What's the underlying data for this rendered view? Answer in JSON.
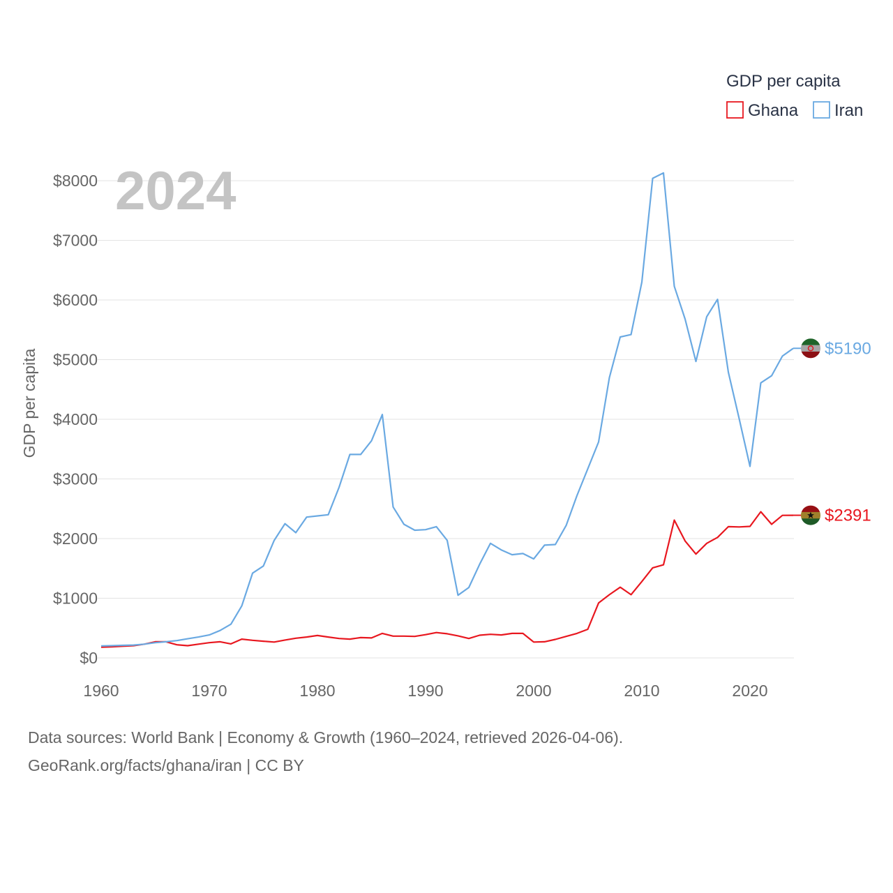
{
  "chart_data": {
    "type": "line",
    "legend_title": "GDP per capita",
    "current_year": "2024",
    "ylabel": "GDP per capita",
    "xlabel": "",
    "xlim": [
      1960,
      2024
    ],
    "ylim": [
      0,
      8000
    ],
    "x_ticks": [
      1960,
      1970,
      1980,
      1990,
      2000,
      2010,
      2020
    ],
    "y_ticks": [
      {
        "value": 0,
        "label": "$0"
      },
      {
        "value": 1000,
        "label": "$1000"
      },
      {
        "value": 2000,
        "label": "$2000"
      },
      {
        "value": 3000,
        "label": "$3000"
      },
      {
        "value": 4000,
        "label": "$4000"
      },
      {
        "value": 5000,
        "label": "$5000"
      },
      {
        "value": 6000,
        "label": "$6000"
      },
      {
        "value": 7000,
        "label": "$7000"
      },
      {
        "value": 8000,
        "label": "$8000"
      }
    ],
    "x": [
      1960,
      1961,
      1962,
      1963,
      1964,
      1965,
      1966,
      1967,
      1968,
      1969,
      1970,
      1971,
      1972,
      1973,
      1974,
      1975,
      1976,
      1977,
      1978,
      1979,
      1980,
      1981,
      1982,
      1983,
      1984,
      1985,
      1986,
      1987,
      1988,
      1989,
      1990,
      1991,
      1992,
      1993,
      1994,
      1995,
      1996,
      1997,
      1998,
      1999,
      2000,
      2001,
      2002,
      2003,
      2004,
      2005,
      2006,
      2007,
      2008,
      2009,
      2010,
      2011,
      2012,
      2013,
      2014,
      2015,
      2016,
      2017,
      2018,
      2019,
      2020,
      2021,
      2022,
      2023,
      2024
    ],
    "series": [
      {
        "name": "Ghana",
        "color": "#e8171f",
        "end_label": "$2391",
        "flag_icon": "ghana-flag-icon",
        "values": [
          180,
          185,
          195,
          205,
          230,
          270,
          270,
          220,
          205,
          230,
          255,
          270,
          235,
          315,
          295,
          280,
          265,
          300,
          330,
          350,
          375,
          350,
          325,
          315,
          340,
          335,
          410,
          365,
          365,
          360,
          390,
          425,
          405,
          370,
          325,
          380,
          395,
          385,
          410,
          410,
          265,
          270,
          310,
          360,
          410,
          480,
          920,
          1060,
          1185,
          1060,
          1280,
          1510,
          1560,
          2310,
          1960,
          1740,
          1920,
          2020,
          2200,
          2195,
          2205,
          2450,
          2240,
          2390,
          2391
        ]
      },
      {
        "name": "Iran",
        "color": "#6aa9e2",
        "end_label": "$5190",
        "flag_icon": "iran-flag-icon",
        "values": [
          200,
          205,
          210,
          215,
          230,
          255,
          270,
          290,
          320,
          350,
          385,
          460,
          565,
          870,
          1420,
          1540,
          1970,
          2250,
          2100,
          2360,
          2380,
          2400,
          2860,
          3410,
          3410,
          3640,
          4080,
          2530,
          2240,
          2140,
          2150,
          2200,
          1970,
          1050,
          1180,
          1570,
          1920,
          1810,
          1730,
          1750,
          1660,
          1890,
          1900,
          2220,
          2720,
          3170,
          3620,
          4700,
          5380,
          5420,
          6300,
          8040,
          8130,
          6230,
          5680,
          4970,
          5720,
          6010,
          4790,
          4010,
          3210,
          4610,
          4730,
          5060,
          5190
        ]
      }
    ]
  },
  "footer": {
    "line1": "Data sources: World Bank | Economy & Growth (1960–2024, retrieved 2026-04-06).",
    "line2": "GeoRank.org/facts/ghana/iran | CC BY"
  }
}
